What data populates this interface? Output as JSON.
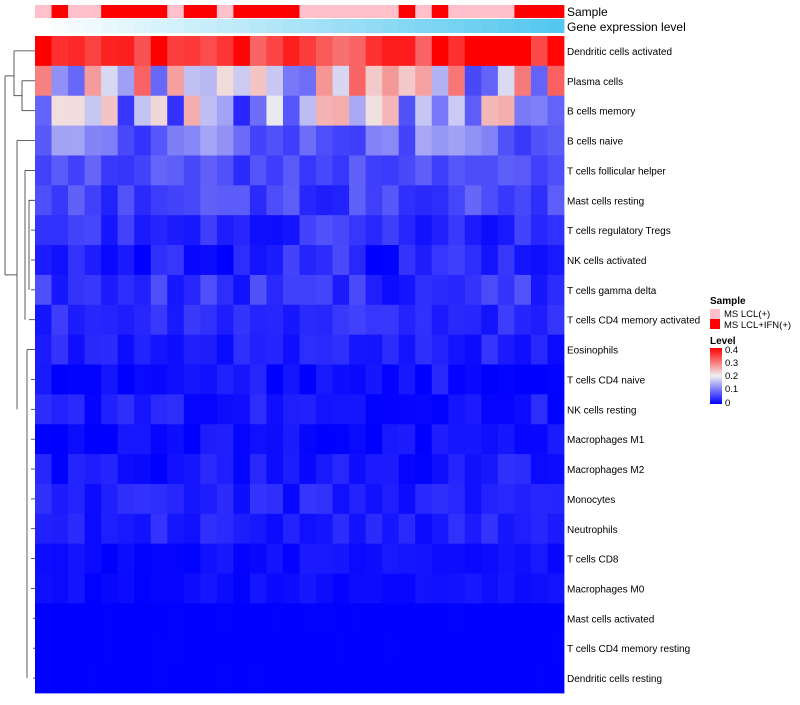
{
  "chart_data": {
    "type": "heatmap",
    "title": "",
    "colors": {
      "low": "#0000ff",
      "mid": "#f0f0f0",
      "high": "#ff0000",
      "sample_group_1": "#ffc0cb",
      "sample_group_2": "#ff0000",
      "expression_low": "#ffffff",
      "expression_high": "#54c7ee",
      "dendrogram": "#333333"
    },
    "annotations": {
      "sample_track_label": "Sample",
      "expression_track_label": "Gene expression level",
      "sample_groups": [
        "MS LCL(+)",
        "MS LCL+IFN(+)"
      ],
      "sample_pattern": [
        0,
        1,
        0,
        0,
        1,
        1,
        1,
        1,
        0,
        1,
        1,
        0,
        1,
        1,
        1,
        1,
        0,
        0,
        0,
        0,
        0,
        0,
        1,
        0,
        1,
        0,
        0,
        0,
        0,
        1,
        1,
        1
      ],
      "expression_range": [
        0,
        1
      ]
    },
    "legend": {
      "sample_title": "Sample",
      "sample_items": [
        "MS LCL(+)",
        "MS LCL+IFN(+)"
      ],
      "level_title": "Level",
      "level_ticks": [
        "0.4",
        "0.3",
        "0.2",
        "0.1",
        "0"
      ],
      "level_range": [
        0,
        0.4
      ],
      "placement": "right-middle"
    },
    "rows": [
      "Dendritic cells activated",
      "Plasma cells",
      "B cells memory",
      "B cells naive",
      "T cells follicular helper",
      "Mast cells resting",
      "T cells regulatory  Tregs",
      "NK cells activated",
      "T cells gamma delta",
      "T cells CD4 memory activated",
      "Eosinophils",
      "T cells CD4 naive",
      "NK cells resting",
      "Macrophages M1",
      "Macrophages M2",
      "Monocytes",
      "Neutrophils",
      "T cells CD8",
      "Macrophages M0",
      "Mast cells activated",
      "T cells CD4 memory resting",
      "Dendritic cells resting"
    ],
    "n_samples": 32,
    "row_base_levels": [
      0.36,
      0.2,
      0.14,
      0.09,
      0.06,
      0.055,
      0.04,
      0.03,
      0.04,
      0.035,
      0.025,
      0.015,
      0.02,
      0.01,
      0.02,
      0.025,
      0.025,
      0.01,
      0.01,
      0.0,
      0.0,
      0.0
    ],
    "row_spread": [
      0.06,
      0.14,
      0.12,
      0.06,
      0.025,
      0.03,
      0.03,
      0.035,
      0.03,
      0.02,
      0.02,
      0.02,
      0.02,
      0.02,
      0.02,
      0.02,
      0.02,
      0.012,
      0.01,
      0.003,
      0.003,
      0.003
    ]
  }
}
